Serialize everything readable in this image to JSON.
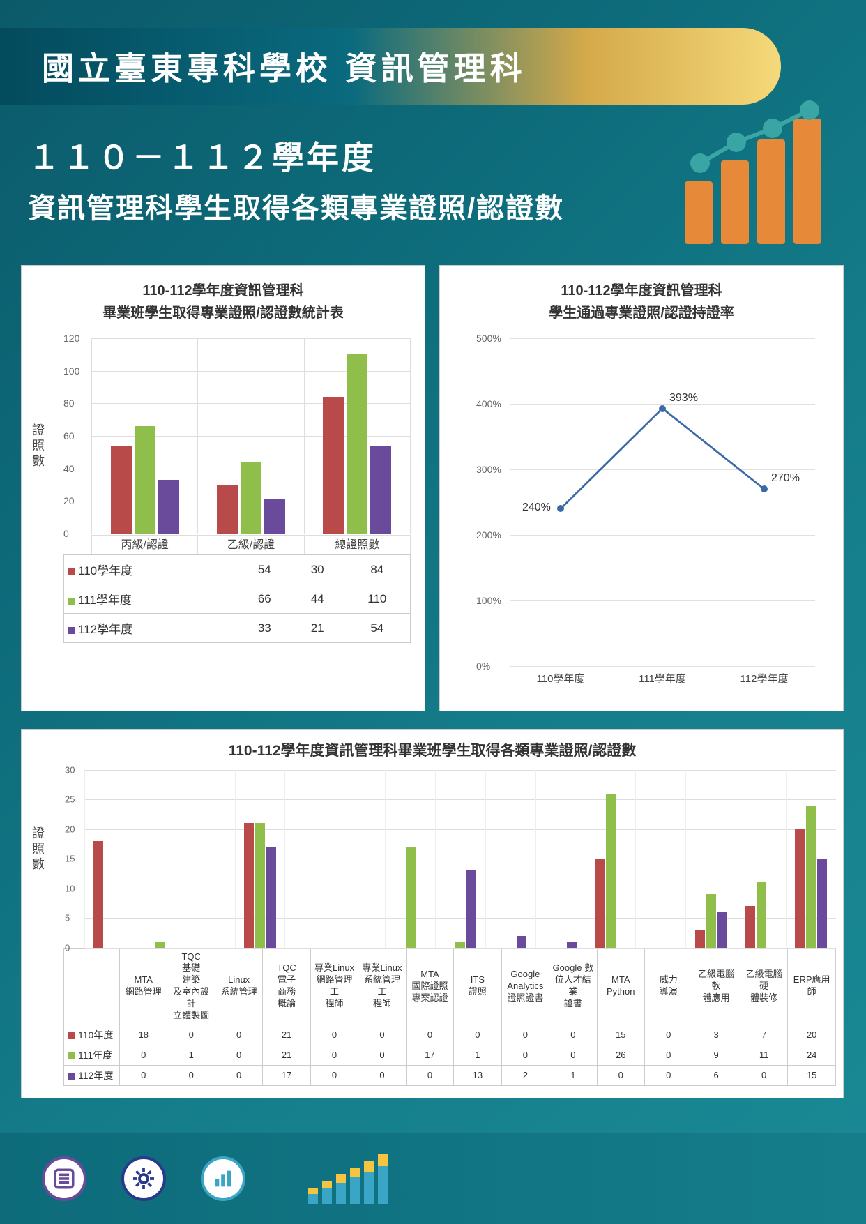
{
  "colors": {
    "series110": "#b84a4a",
    "series111": "#8fbf4a",
    "series112": "#6a4a9a",
    "line": "#3a6aa5",
    "headerBar1": "#e68a3a",
    "headerBar2": "#e68a3a",
    "headerBar3": "#e68a3a",
    "headerBar4": "#e68a3a",
    "headerDot": "#3aa5a5",
    "footerCircle1": "#6a4a9a",
    "footerCircle2": "#2a3a8a",
    "footerCircle3": "#3aa5c5",
    "footerBarA": "#3aa5c5",
    "footerBarB": "#f5c542"
  },
  "header": {
    "title": "國立臺東專科學校 資訊管理科",
    "sub1": "１１０－１１２學年度",
    "sub2": "資訊管理科學生取得各類專業證照/認證數"
  },
  "chart1": {
    "title1": "110-112學年度資訊管理科",
    "title2": "畢業班學生取得專業證照/認證數統計表",
    "ylabel": "證照數",
    "ylim": [
      0,
      120
    ],
    "ytick_step": 20,
    "categories": [
      "丙級/認證",
      "乙級/認證",
      "總證照數"
    ],
    "series": [
      {
        "name": "110學年度",
        "colorKey": "series110",
        "values": [
          54,
          30,
          84
        ]
      },
      {
        "name": "111學年度",
        "colorKey": "series111",
        "values": [
          66,
          44,
          110
        ]
      },
      {
        "name": "112學年度",
        "colorKey": "series112",
        "values": [
          33,
          21,
          54
        ]
      }
    ]
  },
  "chart2": {
    "title1": "110-112學年度資訊管理科",
    "title2": "學生通過專業證照/認證持證率",
    "ylim": [
      0,
      500
    ],
    "ytick_step": 100,
    "yunit": "%",
    "categories": [
      "110學年度",
      "111學年度",
      "112學年度"
    ],
    "points": [
      240,
      393,
      270
    ],
    "labels": [
      "240%",
      "393%",
      "270%"
    ]
  },
  "chart3": {
    "title": "110-112學年度資訊管理科畢業班學生取得各類專業證照/認證數",
    "ylabel": "證照數",
    "ylim": [
      0,
      30
    ],
    "ytick_step": 5,
    "categories": [
      "MTA\n網路管理",
      "TQC\n基礎\n建築\n及室內設計\n立體製圖",
      "Linux\n系統管理",
      "TQC\n電子\n商務\n概論",
      "專業Linux\n網路管理工\n程師",
      "專業Linux\n系統管理工\n程師",
      "MTA\n國際證照\n專案認證",
      "ITS\n證照",
      "Google\nAnalytics\n證照證書",
      "Google 數\n位人才結業\n證書",
      "MTA\nPython",
      "威力\n導演",
      "乙級電腦軟\n體應用",
      "乙級電腦硬\n體裝修",
      "ERP應用師"
    ],
    "series": [
      {
        "name": "110年度",
        "colorKey": "series110",
        "values": [
          18,
          0,
          0,
          21,
          0,
          0,
          0,
          0,
          0,
          0,
          15,
          0,
          3,
          7,
          20
        ]
      },
      {
        "name": "111年度",
        "colorKey": "series111",
        "values": [
          0,
          1,
          0,
          21,
          0,
          0,
          17,
          1,
          0,
          0,
          26,
          0,
          9,
          11,
          24
        ]
      },
      {
        "name": "112年度",
        "colorKey": "series112",
        "values": [
          0,
          0,
          0,
          17,
          0,
          0,
          0,
          13,
          2,
          1,
          0,
          0,
          6,
          0,
          15
        ]
      }
    ]
  },
  "footer": {
    "icons": [
      "list-icon",
      "gear-icon",
      "barchart-icon"
    ]
  }
}
